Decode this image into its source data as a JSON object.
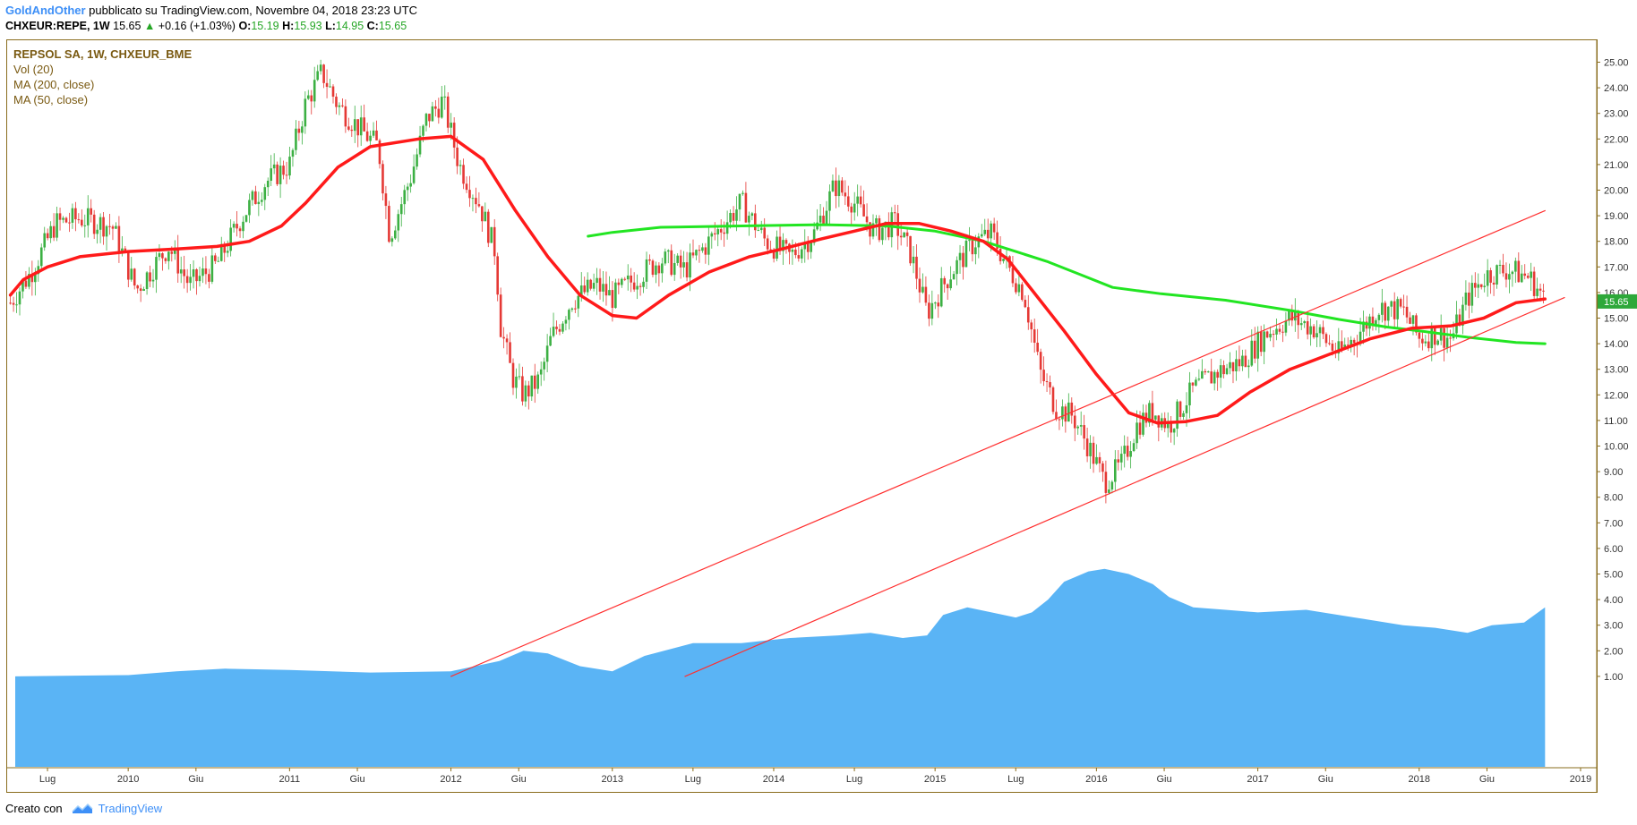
{
  "header": {
    "author": "GoldAndOther",
    "published": "pubblicato su TradingView.com, Novembre 04, 2018 23:23 UTC",
    "symbol": "CHXEUR:REPE, 1W",
    "last": "15.65",
    "change": "+0.16 (+1.03%)",
    "change_arrow": "▲",
    "o_label": "O:",
    "o_val": "15.19",
    "h_label": "H:",
    "h_val": "15.93",
    "l_label": "L:",
    "l_val": "14.95",
    "c_label": "C:",
    "c_val": "15.65"
  },
  "legend": {
    "title": "REPSOL SA, 1W, CHXEUR_BME",
    "vol": "Vol (20)",
    "ma200": "MA (200, close)",
    "ma50": "MA (50, close)"
  },
  "footer": {
    "made_with": "Creato con",
    "brand": "TradingView"
  },
  "colors": {
    "up": "#26a69a",
    "up_candle": "#3cb043",
    "down_candle": "#e53935",
    "ma50": "#ff1a1a",
    "ma200": "#22e522",
    "volume_area": "#5ab4f5",
    "channel": "#ff3030",
    "price_tag": "#2ea83a"
  },
  "chart_data": {
    "type": "candlestick",
    "y_axis": {
      "ylim": [
        1.0,
        25.5
      ],
      "price_ticks": [
        "16.00",
        "17.00",
        "18.00",
        "19.00",
        "20.00",
        "21.00",
        "22.00",
        "23.00",
        "24.00",
        "25.00",
        "1.00",
        "2.00",
        "3.00",
        "4.00",
        "5.00",
        "6.00",
        "7.00",
        "8.00",
        "9.00",
        "10.00",
        "11.00",
        "12.00",
        "13.00",
        "14.00",
        "15.00"
      ],
      "last_price_tag": "15.65"
    },
    "x_axis": {
      "range": [
        2009.25,
        2019.1
      ],
      "labels": [
        {
          "label": "Lug",
          "t": 2009.5
        },
        {
          "label": "2010",
          "t": 2010.0
        },
        {
          "label": "Giu",
          "t": 2010.42
        },
        {
          "label": "2011",
          "t": 2011.0
        },
        {
          "label": "Giu",
          "t": 2011.42
        },
        {
          "label": "2012",
          "t": 2012.0
        },
        {
          "label": "Giu",
          "t": 2012.42
        },
        {
          "label": "2013",
          "t": 2013.0
        },
        {
          "label": "Lug",
          "t": 2013.5
        },
        {
          "label": "2014",
          "t": 2014.0
        },
        {
          "label": "Lug",
          "t": 2014.5
        },
        {
          "label": "2015",
          "t": 2015.0
        },
        {
          "label": "Lug",
          "t": 2015.5
        },
        {
          "label": "2016",
          "t": 2016.0
        },
        {
          "label": "Giu",
          "t": 2016.42
        },
        {
          "label": "2017",
          "t": 2017.0
        },
        {
          "label": "Giu",
          "t": 2017.42
        },
        {
          "label": "2018",
          "t": 2018.0
        },
        {
          "label": "Giu",
          "t": 2018.42
        },
        {
          "label": "2019",
          "t": 2019.0
        }
      ]
    },
    "price_path": [
      [
        2009.27,
        15.6
      ],
      [
        2009.4,
        16.8
      ],
      [
        2009.55,
        18.7
      ],
      [
        2009.7,
        18.9
      ],
      [
        2009.9,
        18.6
      ],
      [
        2010.05,
        16.1
      ],
      [
        2010.25,
        17.8
      ],
      [
        2010.38,
        16.3
      ],
      [
        2010.55,
        17.1
      ],
      [
        2010.7,
        18.9
      ],
      [
        2010.85,
        20.3
      ],
      [
        2011.0,
        21.0
      ],
      [
        2011.1,
        23.4
      ],
      [
        2011.2,
        24.6
      ],
      [
        2011.3,
        23.3
      ],
      [
        2011.45,
        22.3
      ],
      [
        2011.55,
        21.7
      ],
      [
        2011.62,
        18.2
      ],
      [
        2011.75,
        20.5
      ],
      [
        2011.85,
        22.8
      ],
      [
        2011.95,
        23.5
      ],
      [
        2012.05,
        21.0
      ],
      [
        2012.18,
        19.4
      ],
      [
        2012.28,
        17.5
      ],
      [
        2012.3,
        14.9
      ],
      [
        2012.38,
        12.7
      ],
      [
        2012.45,
        12.0
      ],
      [
        2012.55,
        12.6
      ],
      [
        2012.62,
        14.2
      ],
      [
        2012.75,
        15.7
      ],
      [
        2012.9,
        16.3
      ],
      [
        2013.0,
        15.8
      ],
      [
        2013.15,
        16.6
      ],
      [
        2013.3,
        17.3
      ],
      [
        2013.45,
        16.9
      ],
      [
        2013.6,
        18.0
      ],
      [
        2013.8,
        19.5
      ],
      [
        2013.95,
        18.0
      ],
      [
        2014.1,
        17.4
      ],
      [
        2014.25,
        18.3
      ],
      [
        2014.38,
        20.2
      ],
      [
        2014.5,
        19.5
      ],
      [
        2014.62,
        18.4
      ],
      [
        2014.75,
        18.7
      ],
      [
        2014.85,
        17.5
      ],
      [
        2014.95,
        15.2
      ],
      [
        2015.1,
        16.8
      ],
      [
        2015.25,
        18.0
      ],
      [
        2015.35,
        18.3
      ],
      [
        2015.45,
        17.0
      ],
      [
        2015.55,
        16.0
      ],
      [
        2015.65,
        12.9
      ],
      [
        2015.75,
        11.5
      ],
      [
        2015.85,
        11.2
      ],
      [
        2015.95,
        10.0
      ],
      [
        2016.05,
        8.6
      ],
      [
        2016.15,
        9.2
      ],
      [
        2016.25,
        10.8
      ],
      [
        2016.35,
        11.4
      ],
      [
        2016.45,
        10.8
      ],
      [
        2016.6,
        12.2
      ],
      [
        2016.75,
        12.9
      ],
      [
        2016.9,
        13.3
      ],
      [
        2017.05,
        14.4
      ],
      [
        2017.2,
        15.0
      ],
      [
        2017.35,
        14.6
      ],
      [
        2017.5,
        13.6
      ],
      [
        2017.62,
        14.4
      ],
      [
        2017.75,
        15.4
      ],
      [
        2017.9,
        15.3
      ],
      [
        2018.0,
        14.2
      ],
      [
        2018.1,
        14.4
      ],
      [
        2018.2,
        14.2
      ],
      [
        2018.3,
        15.8
      ],
      [
        2018.42,
        16.7
      ],
      [
        2018.55,
        16.9
      ],
      [
        2018.68,
        16.6
      ],
      [
        2018.74,
        16.1
      ],
      [
        2018.78,
        15.65
      ]
    ],
    "series": [
      {
        "name": "MA (50, close)",
        "x": [
          2009.27,
          2009.35,
          2009.5,
          2009.7,
          2010.0,
          2010.3,
          2010.55,
          2010.75,
          2010.95,
          2011.1,
          2011.3,
          2011.5,
          2011.8,
          2012.0,
          2012.2,
          2012.4,
          2012.6,
          2012.8,
          2013.0,
          2013.15,
          2013.35,
          2013.6,
          2013.85,
          2014.05,
          2014.3,
          2014.5,
          2014.7,
          2014.9,
          2015.1,
          2015.3,
          2015.45,
          2015.6,
          2015.8,
          2016.0,
          2016.2,
          2016.38,
          2016.55,
          2016.75,
          2016.95,
          2017.2,
          2017.45,
          2017.7,
          2017.95,
          2018.2,
          2018.4,
          2018.6,
          2018.78
        ],
        "values": [
          15.9,
          16.5,
          17.0,
          17.4,
          17.6,
          17.7,
          17.8,
          18.0,
          18.6,
          19.5,
          20.9,
          21.7,
          22.0,
          22.1,
          21.2,
          19.2,
          17.4,
          15.9,
          15.1,
          15.0,
          15.9,
          16.8,
          17.4,
          17.7,
          18.1,
          18.4,
          18.7,
          18.7,
          18.4,
          18.0,
          17.3,
          16.1,
          14.5,
          12.8,
          11.3,
          10.9,
          10.95,
          11.2,
          12.1,
          13.0,
          13.6,
          14.2,
          14.6,
          14.7,
          15.0,
          15.6,
          15.75
        ]
      },
      {
        "name": "MA (200, close)",
        "x": [
          2012.85,
          2013.0,
          2013.3,
          2013.8,
          2014.3,
          2014.7,
          2015.0,
          2015.3,
          2015.5,
          2015.7,
          2015.9,
          2016.1,
          2016.4,
          2016.8,
          2017.2,
          2017.5,
          2017.8,
          2018.0,
          2018.3,
          2018.6,
          2018.78
        ],
        "values": [
          18.2,
          18.35,
          18.55,
          18.6,
          18.65,
          18.6,
          18.4,
          18.0,
          17.6,
          17.2,
          16.7,
          16.2,
          15.95,
          15.7,
          15.3,
          14.95,
          14.65,
          14.5,
          14.25,
          14.05,
          14.0
        ]
      },
      {
        "name": "Vol (20)",
        "x": [
          2009.3,
          2010.0,
          2010.3,
          2010.6,
          2011.0,
          2011.5,
          2012.0,
          2012.3,
          2012.45,
          2012.6,
          2012.8,
          2013.0,
          2013.2,
          2013.5,
          2013.8,
          2014.1,
          2014.4,
          2014.6,
          2014.8,
          2014.95,
          2015.05,
          2015.2,
          2015.35,
          2015.5,
          2015.6,
          2015.7,
          2015.8,
          2015.95,
          2016.05,
          2016.2,
          2016.35,
          2016.45,
          2016.6,
          2016.8,
          2017.0,
          2017.3,
          2017.6,
          2017.9,
          2018.1,
          2018.3,
          2018.45,
          2018.65,
          2018.78
        ],
        "values": [
          1.0,
          1.05,
          1.2,
          1.3,
          1.25,
          1.15,
          1.2,
          1.6,
          2.0,
          1.9,
          1.4,
          1.2,
          1.8,
          2.3,
          2.3,
          2.5,
          2.6,
          2.7,
          2.5,
          2.6,
          3.4,
          3.7,
          3.5,
          3.3,
          3.5,
          4.0,
          4.7,
          5.1,
          5.2,
          5.0,
          4.6,
          4.1,
          3.7,
          3.6,
          3.5,
          3.6,
          3.3,
          3.0,
          2.9,
          2.7,
          3.0,
          3.1,
          3.7
        ]
      },
      {
        "name": "channel_upper",
        "x": [
          2012.0,
          2018.78
        ],
        "values": [
          1.0,
          19.2
        ]
      },
      {
        "name": "channel_lower",
        "x": [
          2013.45,
          2018.9
        ],
        "values": [
          1.0,
          15.8
        ]
      }
    ]
  }
}
